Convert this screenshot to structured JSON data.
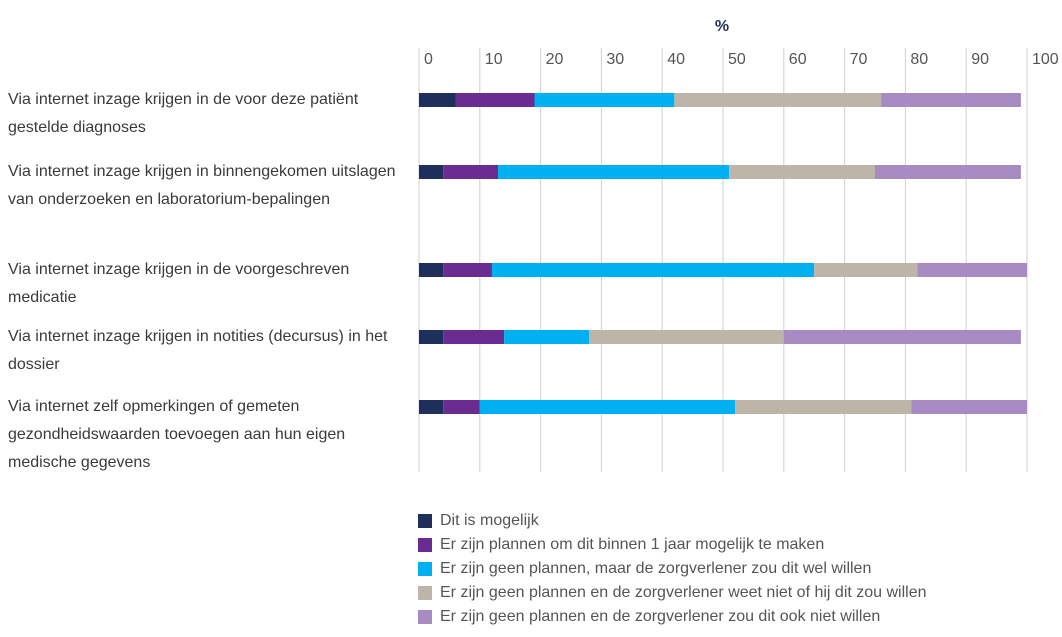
{
  "chart_data": {
    "type": "stacked-barh",
    "title": "%",
    "categories": [
      "Via internet inzage krijgen in de voor deze patiënt gestelde diagnoses",
      "Via internet inzage krijgen in binnengekomen uitslagen van onderzoeken en laboratorium-bepalingen",
      "Via internet inzage krijgen in de voorgeschreven medicatie",
      "Via internet inzage krijgen in notities (decursus) in het dossier",
      "Via internet zelf opmerkingen of gemeten gezondheidswaarden toevoegen aan hun eigen medische gegevens"
    ],
    "series": [
      {
        "name": "Dit is mogelijk",
        "color": "#1f2f5c",
        "values": [
          6,
          4,
          4,
          4,
          4
        ]
      },
      {
        "name": "Er zijn plannen om dit binnen 1 jaar mogelijk te maken",
        "color": "#6a2c91",
        "values": [
          13,
          9,
          8,
          10,
          6
        ]
      },
      {
        "name": "Er zijn geen plannen, maar de zorgverlener zou dit wel willen",
        "color": "#00b0f0",
        "values": [
          23,
          38,
          53,
          14,
          42
        ]
      },
      {
        "name": "Er zijn geen plannen en de zorgverlener weet niet of hij dit zou willen",
        "color": "#bdb5a8",
        "values": [
          34,
          24,
          17,
          32,
          29
        ]
      },
      {
        "name": "Er zijn geen plannen en de zorgverlener zou dit ook niet willen",
        "color": "#a98bc3",
        "values": [
          23,
          24,
          18,
          39,
          19
        ]
      }
    ],
    "xlim": [
      0,
      100
    ],
    "xticks": [
      0,
      10,
      20,
      30,
      40,
      50,
      60,
      70,
      80,
      90,
      100
    ],
    "grid": true
  }
}
